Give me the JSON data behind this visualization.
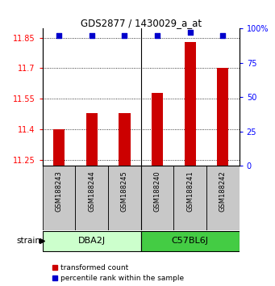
{
  "title": "GDS2877 / 1430029_a_at",
  "samples": [
    "GSM188243",
    "GSM188244",
    "GSM188245",
    "GSM188240",
    "GSM188241",
    "GSM188242"
  ],
  "transformed_counts": [
    11.4,
    11.48,
    11.48,
    11.58,
    11.83,
    11.7
  ],
  "percentile_ranks": [
    95,
    95,
    95,
    95,
    97,
    95
  ],
  "bar_color": "#cc0000",
  "dot_color": "#0000cc",
  "ylim_left": [
    11.22,
    11.895
  ],
  "ylim_right": [
    0,
    100
  ],
  "yticks_left": [
    11.25,
    11.4,
    11.55,
    11.7,
    11.85
  ],
  "yticks_right": [
    0,
    25,
    50,
    75,
    100
  ],
  "ytick_labels_left": [
    "11.25",
    "11.4",
    "11.55",
    "11.7",
    "11.85"
  ],
  "ytick_labels_right": [
    "0",
    "25",
    "50",
    "75",
    "100%"
  ],
  "bar_width": 0.35,
  "sample_box_color": "#c8c8c8",
  "group_dba_color": "#ccffcc",
  "group_c57_color": "#44cc44",
  "legend_items": [
    "transformed count",
    "percentile rank within the sample"
  ],
  "strain_label": "strain",
  "group_split": 3,
  "n_samples": 6
}
